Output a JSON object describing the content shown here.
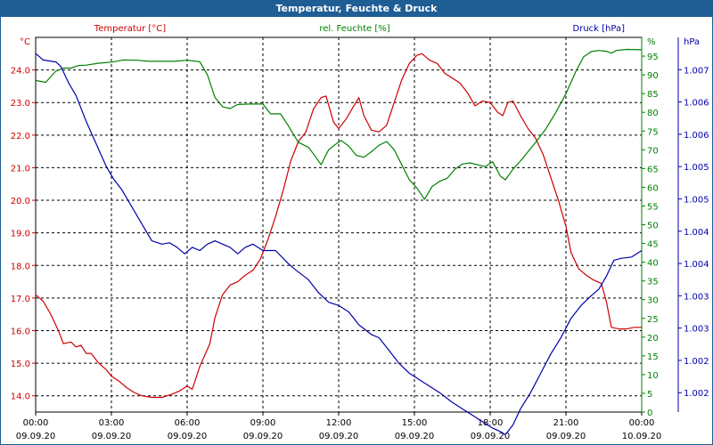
{
  "window": {
    "title": "Temperatur, Feuchte & Druck"
  },
  "colors": {
    "titlebar": "#1f5d95",
    "temp": "#cc0000",
    "hum": "#008000",
    "press": "#0000aa",
    "grid": "#000000"
  },
  "chart_data": {
    "type": "line",
    "title": "Temperatur, Feuchte & Druck",
    "grid": true,
    "x": {
      "range": [
        "09.09.20 00:00",
        "10.09.20 00:00"
      ],
      "tick_labels": [
        {
          "time": "00:00",
          "date": "09.09.20",
          "hour": 0
        },
        {
          "time": "03:00",
          "date": "09.09.20",
          "hour": 3
        },
        {
          "time": "06:00",
          "date": "09.09.20",
          "hour": 6
        },
        {
          "time": "09:00",
          "date": "09.09.20",
          "hour": 9
        },
        {
          "time": "12:00",
          "date": "09.09.20",
          "hour": 12
        },
        {
          "time": "15:00",
          "date": "09.09.20",
          "hour": 15
        },
        {
          "time": "18:00",
          "date": "09.09.20",
          "hour": 18
        },
        {
          "time": "21:00",
          "date": "09.09.20",
          "hour": 21
        },
        {
          "time": "00:00",
          "date": "10.09.20",
          "hour": 24
        }
      ]
    },
    "axes": {
      "temp": {
        "label": "Temperatur [°C]",
        "unit": "°C",
        "range": [
          13.5,
          25.0
        ],
        "ticks": [
          "14.0",
          "15.0",
          "16.0",
          "17.0",
          "18.0",
          "19.0",
          "20.0",
          "21.0",
          "22.0",
          "23.0",
          "24.0"
        ]
      },
      "hum": {
        "label": "rel. Feuchte [%]",
        "unit": "%",
        "range": [
          0,
          100
        ],
        "ticks": [
          "0",
          "5",
          "10",
          "15",
          "20",
          "25",
          "30",
          "35",
          "40",
          "45",
          "50",
          "55",
          "60",
          "65",
          "70",
          "75",
          "80",
          "85",
          "90",
          "95"
        ]
      },
      "press": {
        "label": "Druck [hPa]",
        "unit": "hPa",
        "range": [
          1001.5,
          1007.3
        ],
        "ticks": [
          {
            "label": "1.002",
            "value": 1001.8
          },
          {
            "label": "1.002",
            "value": 1002.3
          },
          {
            "label": "1.003",
            "value": 1002.8
          },
          {
            "label": "1.003",
            "value": 1003.3
          },
          {
            "label": "1.004",
            "value": 1003.8
          },
          {
            "label": "1.004",
            "value": 1004.3
          },
          {
            "label": "1.005",
            "value": 1004.8
          },
          {
            "label": "1.005",
            "value": 1005.3
          },
          {
            "label": "1.006",
            "value": 1005.8
          },
          {
            "label": "1.006",
            "value": 1006.3
          },
          {
            "label": "1.007",
            "value": 1006.8
          }
        ]
      }
    },
    "series": [
      {
        "name": "Temperatur [°C]",
        "axis": "temp",
        "points": [
          [
            0,
            17.1
          ],
          [
            0.3,
            16.9
          ],
          [
            0.6,
            16.5
          ],
          [
            0.9,
            16.0
          ],
          [
            1.1,
            15.6
          ],
          [
            1.4,
            15.65
          ],
          [
            1.6,
            15.5
          ],
          [
            1.8,
            15.55
          ],
          [
            2.0,
            15.3
          ],
          [
            2.2,
            15.3
          ],
          [
            2.5,
            15.0
          ],
          [
            2.8,
            14.8
          ],
          [
            3.0,
            14.6
          ],
          [
            3.3,
            14.45
          ],
          [
            3.6,
            14.25
          ],
          [
            3.9,
            14.1
          ],
          [
            4.2,
            14.0
          ],
          [
            4.6,
            13.95
          ],
          [
            5.0,
            13.95
          ],
          [
            5.4,
            14.05
          ],
          [
            5.7,
            14.15
          ],
          [
            6.0,
            14.3
          ],
          [
            6.2,
            14.2
          ],
          [
            6.5,
            14.9
          ],
          [
            6.9,
            15.6
          ],
          [
            7.1,
            16.4
          ],
          [
            7.4,
            17.1
          ],
          [
            7.7,
            17.4
          ],
          [
            8.0,
            17.5
          ],
          [
            8.3,
            17.7
          ],
          [
            8.6,
            17.85
          ],
          [
            8.9,
            18.2
          ],
          [
            9.2,
            18.8
          ],
          [
            9.5,
            19.5
          ],
          [
            9.8,
            20.3
          ],
          [
            10.1,
            21.2
          ],
          [
            10.4,
            21.8
          ],
          [
            10.7,
            22.1
          ],
          [
            11.0,
            22.8
          ],
          [
            11.3,
            23.15
          ],
          [
            11.5,
            23.2
          ],
          [
            11.8,
            22.4
          ],
          [
            12.0,
            22.2
          ],
          [
            12.3,
            22.5
          ],
          [
            12.6,
            22.9
          ],
          [
            12.8,
            23.15
          ],
          [
            13.0,
            22.6
          ],
          [
            13.3,
            22.15
          ],
          [
            13.6,
            22.1
          ],
          [
            13.9,
            22.3
          ],
          [
            14.2,
            23.0
          ],
          [
            14.5,
            23.7
          ],
          [
            14.8,
            24.2
          ],
          [
            15.1,
            24.45
          ],
          [
            15.3,
            24.5
          ],
          [
            15.6,
            24.3
          ],
          [
            15.9,
            24.2
          ],
          [
            16.2,
            23.9
          ],
          [
            16.5,
            23.75
          ],
          [
            16.8,
            23.6
          ],
          [
            17.1,
            23.3
          ],
          [
            17.4,
            22.9
          ],
          [
            17.7,
            23.05
          ],
          [
            18.0,
            23.0
          ],
          [
            18.3,
            22.7
          ],
          [
            18.5,
            22.6
          ],
          [
            18.7,
            23.0
          ],
          [
            18.9,
            23.05
          ],
          [
            19.2,
            22.6
          ],
          [
            19.5,
            22.2
          ],
          [
            19.8,
            21.9
          ],
          [
            20.1,
            21.4
          ],
          [
            20.4,
            20.7
          ],
          [
            20.7,
            20.0
          ],
          [
            21.0,
            19.2
          ],
          [
            21.2,
            18.4
          ],
          [
            21.5,
            17.9
          ],
          [
            21.8,
            17.7
          ],
          [
            22.1,
            17.55
          ],
          [
            22.4,
            17.45
          ],
          [
            22.6,
            16.9
          ],
          [
            22.8,
            16.1
          ],
          [
            23.1,
            16.05
          ],
          [
            23.4,
            16.05
          ],
          [
            23.7,
            16.1
          ],
          [
            24.0,
            16.1
          ]
        ]
      },
      {
        "name": "rel. Feuchte [%]",
        "axis": "hum",
        "points": [
          [
            0,
            88.5
          ],
          [
            0.4,
            88.0
          ],
          [
            0.8,
            91.0
          ],
          [
            1.1,
            91.8
          ],
          [
            1.4,
            91.8
          ],
          [
            1.7,
            92.5
          ],
          [
            2.0,
            92.6
          ],
          [
            2.5,
            93.1
          ],
          [
            3.0,
            93.4
          ],
          [
            3.5,
            94.0
          ],
          [
            4.0,
            93.9
          ],
          [
            4.5,
            93.6
          ],
          [
            5.0,
            93.6
          ],
          [
            5.5,
            93.6
          ],
          [
            6.0,
            93.9
          ],
          [
            6.5,
            93.5
          ],
          [
            6.8,
            90.0
          ],
          [
            7.1,
            84.0
          ],
          [
            7.4,
            81.5
          ],
          [
            7.7,
            81.0
          ],
          [
            8.0,
            82.1
          ],
          [
            8.5,
            82.2
          ],
          [
            9.0,
            82.2
          ],
          [
            9.3,
            79.6
          ],
          [
            9.7,
            79.6
          ],
          [
            10.0,
            76.5
          ],
          [
            10.4,
            72.0
          ],
          [
            10.8,
            70.7
          ],
          [
            11.1,
            68.0
          ],
          [
            11.3,
            66.0
          ],
          [
            11.6,
            70.0
          ],
          [
            11.9,
            71.6
          ],
          [
            12.1,
            72.5
          ],
          [
            12.4,
            71.0
          ],
          [
            12.7,
            68.5
          ],
          [
            13.0,
            68.0
          ],
          [
            13.3,
            69.5
          ],
          [
            13.6,
            71.2
          ],
          [
            13.9,
            72.2
          ],
          [
            14.2,
            70.0
          ],
          [
            14.5,
            66.0
          ],
          [
            14.8,
            62.0
          ],
          [
            15.1,
            59.8
          ],
          [
            15.4,
            56.8
          ],
          [
            15.7,
            60.2
          ],
          [
            16.0,
            61.6
          ],
          [
            16.3,
            62.4
          ],
          [
            16.6,
            64.8
          ],
          [
            16.9,
            66.2
          ],
          [
            17.2,
            66.5
          ],
          [
            17.5,
            66.0
          ],
          [
            17.8,
            65.5
          ],
          [
            18.1,
            66.8
          ],
          [
            18.4,
            63.0
          ],
          [
            18.6,
            62.0
          ],
          [
            18.9,
            64.8
          ],
          [
            19.2,
            67.0
          ],
          [
            19.5,
            69.5
          ],
          [
            19.8,
            72.0
          ],
          [
            20.2,
            75.5
          ],
          [
            20.6,
            80.0
          ],
          [
            21.0,
            85.0
          ],
          [
            21.4,
            91.0
          ],
          [
            21.7,
            94.8
          ],
          [
            22.0,
            96.2
          ],
          [
            22.3,
            96.5
          ],
          [
            22.6,
            96.3
          ],
          [
            22.8,
            95.8
          ],
          [
            23.0,
            96.5
          ],
          [
            23.4,
            96.8
          ],
          [
            24.0,
            96.7
          ]
        ]
      },
      {
        "name": "Druck [hPa]",
        "axis": "press",
        "points": [
          [
            0,
            1007.05
          ],
          [
            0.3,
            1006.95
          ],
          [
            0.8,
            1006.92
          ],
          [
            1.0,
            1006.85
          ],
          [
            1.3,
            1006.6
          ],
          [
            1.6,
            1006.4
          ],
          [
            2.0,
            1006.0
          ],
          [
            2.4,
            1005.65
          ],
          [
            2.8,
            1005.3
          ],
          [
            3.1,
            1005.1
          ],
          [
            3.4,
            1004.95
          ],
          [
            3.7,
            1004.75
          ],
          [
            4.0,
            1004.55
          ],
          [
            4.3,
            1004.35
          ],
          [
            4.6,
            1004.15
          ],
          [
            5.0,
            1004.1
          ],
          [
            5.3,
            1004.12
          ],
          [
            5.6,
            1004.05
          ],
          [
            5.9,
            1003.95
          ],
          [
            6.2,
            1004.05
          ],
          [
            6.5,
            1004.0
          ],
          [
            6.8,
            1004.1
          ],
          [
            7.1,
            1004.15
          ],
          [
            7.4,
            1004.1
          ],
          [
            7.7,
            1004.05
          ],
          [
            8.0,
            1003.95
          ],
          [
            8.3,
            1004.05
          ],
          [
            8.6,
            1004.1
          ],
          [
            9.0,
            1004.0
          ],
          [
            9.5,
            1004.0
          ],
          [
            10.0,
            1003.8
          ],
          [
            10.3,
            1003.7
          ],
          [
            10.8,
            1003.55
          ],
          [
            11.2,
            1003.35
          ],
          [
            11.6,
            1003.2
          ],
          [
            12.0,
            1003.15
          ],
          [
            12.4,
            1003.05
          ],
          [
            12.8,
            1002.85
          ],
          [
            13.3,
            1002.7
          ],
          [
            13.6,
            1002.65
          ],
          [
            14.0,
            1002.45
          ],
          [
            14.4,
            1002.25
          ],
          [
            14.8,
            1002.1
          ],
          [
            15.2,
            1002.0
          ],
          [
            15.6,
            1001.9
          ],
          [
            16.0,
            1001.8
          ],
          [
            16.5,
            1001.65
          ],
          [
            16.9,
            1001.55
          ],
          [
            17.3,
            1001.45
          ],
          [
            17.7,
            1001.35
          ],
          [
            18.1,
            1001.25
          ],
          [
            18.4,
            1001.2
          ],
          [
            18.6,
            1001.15
          ],
          [
            18.9,
            1001.3
          ],
          [
            19.2,
            1001.55
          ],
          [
            19.6,
            1001.8
          ],
          [
            20.0,
            1002.1
          ],
          [
            20.4,
            1002.4
          ],
          [
            20.8,
            1002.65
          ],
          [
            21.2,
            1002.95
          ],
          [
            21.6,
            1003.15
          ],
          [
            22.0,
            1003.3
          ],
          [
            22.3,
            1003.4
          ],
          [
            22.6,
            1003.6
          ],
          [
            22.9,
            1003.85
          ],
          [
            23.2,
            1003.88
          ],
          [
            23.6,
            1003.9
          ],
          [
            24.0,
            1004.0
          ]
        ]
      }
    ]
  }
}
